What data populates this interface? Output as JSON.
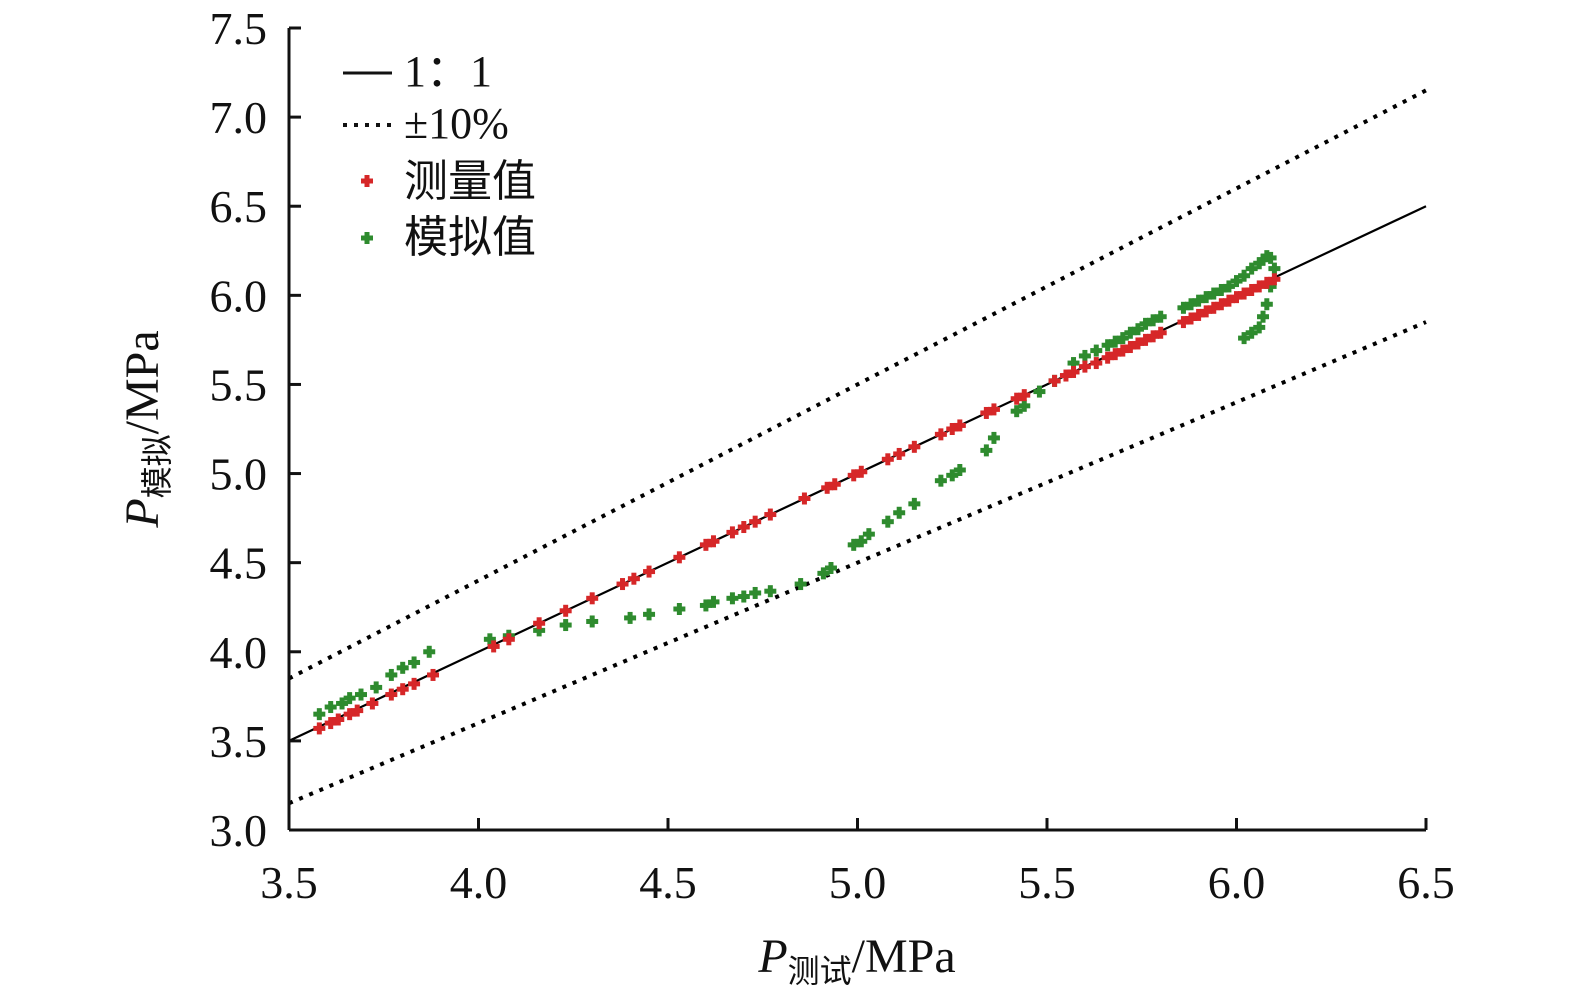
{
  "chart_data": {
    "type": "scatter",
    "xlabel": {
      "main": "P",
      "sub": "测试",
      "unit": "/MPa"
    },
    "ylabel": {
      "main": "P",
      "sub": "模拟",
      "unit": "/MPa"
    },
    "xlim": [
      3.5,
      6.5
    ],
    "ylim": [
      3.0,
      7.5
    ],
    "x_ticks": [
      "3.5",
      "4.0",
      "4.5",
      "5.0",
      "5.5",
      "6.0",
      "6.5"
    ],
    "y_ticks": [
      "3.0",
      "3.5",
      "4.0",
      "4.5",
      "5.0",
      "5.5",
      "6.0",
      "6.5",
      "7.0",
      "7.5"
    ],
    "grid": false,
    "legend_position": "top-left",
    "colors": {
      "measured": "#d62728",
      "simulated": "#2e8b2e",
      "reference": "#000000"
    },
    "reference_lines": [
      {
        "name": "1：1",
        "slope": 1.0,
        "style": "solid"
      },
      {
        "name": "±10%",
        "slopes": [
          1.1,
          0.9
        ],
        "style": "dotted"
      }
    ],
    "series": [
      {
        "name": "测量值",
        "marker": "plus",
        "color": "#d62728",
        "points": [
          [
            3.58,
            3.57
          ],
          [
            3.61,
            3.6
          ],
          [
            3.63,
            3.62
          ],
          [
            3.66,
            3.65
          ],
          [
            3.68,
            3.67
          ],
          [
            3.72,
            3.71
          ],
          [
            3.77,
            3.76
          ],
          [
            3.8,
            3.79
          ],
          [
            3.83,
            3.82
          ],
          [
            3.88,
            3.87
          ],
          [
            4.04,
            4.03
          ],
          [
            4.08,
            4.07
          ],
          [
            4.16,
            4.16
          ],
          [
            4.23,
            4.23
          ],
          [
            4.3,
            4.3
          ],
          [
            4.38,
            4.38
          ],
          [
            4.41,
            4.41
          ],
          [
            4.45,
            4.45
          ],
          [
            4.53,
            4.53
          ],
          [
            4.6,
            4.6
          ],
          [
            4.62,
            4.62
          ],
          [
            4.67,
            4.67
          ],
          [
            4.7,
            4.7
          ],
          [
            4.73,
            4.73
          ],
          [
            4.77,
            4.77
          ],
          [
            4.86,
            4.86
          ],
          [
            4.92,
            4.92
          ],
          [
            4.94,
            4.94
          ],
          [
            4.99,
            4.99
          ],
          [
            5.01,
            5.01
          ],
          [
            5.08,
            5.08
          ],
          [
            5.11,
            5.11
          ],
          [
            5.15,
            5.15
          ],
          [
            5.22,
            5.22
          ],
          [
            5.25,
            5.25
          ],
          [
            5.27,
            5.27
          ],
          [
            5.34,
            5.34
          ],
          [
            5.36,
            5.36
          ],
          [
            5.42,
            5.42
          ],
          [
            5.44,
            5.44
          ],
          [
            5.52,
            5.52
          ],
          [
            5.55,
            5.55
          ],
          [
            5.57,
            5.57
          ],
          [
            5.6,
            5.6
          ],
          [
            5.63,
            5.62
          ],
          [
            5.66,
            5.65
          ],
          [
            5.68,
            5.67
          ],
          [
            5.7,
            5.69
          ],
          [
            5.72,
            5.71
          ],
          [
            5.74,
            5.73
          ],
          [
            5.76,
            5.75
          ],
          [
            5.78,
            5.77
          ],
          [
            5.8,
            5.79
          ],
          [
            5.86,
            5.85
          ],
          [
            5.88,
            5.87
          ],
          [
            5.9,
            5.89
          ],
          [
            5.92,
            5.91
          ],
          [
            5.94,
            5.93
          ],
          [
            5.96,
            5.95
          ],
          [
            5.98,
            5.97
          ],
          [
            6.0,
            5.99
          ],
          [
            6.02,
            6.01
          ],
          [
            6.04,
            6.03
          ],
          [
            6.06,
            6.05
          ],
          [
            6.08,
            6.07
          ],
          [
            6.1,
            6.09
          ]
        ]
      },
      {
        "name": "模拟值",
        "marker": "plus",
        "color": "#2e8b2e",
        "points": [
          [
            3.58,
            3.65
          ],
          [
            3.61,
            3.69
          ],
          [
            3.64,
            3.71
          ],
          [
            3.66,
            3.74
          ],
          [
            3.69,
            3.76
          ],
          [
            3.73,
            3.8
          ],
          [
            3.77,
            3.87
          ],
          [
            3.8,
            3.91
          ],
          [
            3.83,
            3.94
          ],
          [
            3.87,
            4.0
          ],
          [
            4.03,
            4.07
          ],
          [
            4.08,
            4.09
          ],
          [
            4.16,
            4.12
          ],
          [
            4.23,
            4.15
          ],
          [
            4.3,
            4.17
          ],
          [
            4.4,
            4.19
          ],
          [
            4.45,
            4.21
          ],
          [
            4.53,
            4.24
          ],
          [
            4.6,
            4.26
          ],
          [
            4.62,
            4.28
          ],
          [
            4.67,
            4.3
          ],
          [
            4.7,
            4.31
          ],
          [
            4.73,
            4.33
          ],
          [
            4.77,
            4.34
          ],
          [
            4.85,
            4.38
          ],
          [
            4.91,
            4.44
          ],
          [
            4.93,
            4.47
          ],
          [
            4.99,
            4.6
          ],
          [
            5.01,
            4.62
          ],
          [
            5.03,
            4.66
          ],
          [
            5.08,
            4.73
          ],
          [
            5.11,
            4.78
          ],
          [
            5.15,
            4.83
          ],
          [
            5.22,
            4.96
          ],
          [
            5.25,
            4.99
          ],
          [
            5.27,
            5.02
          ],
          [
            5.34,
            5.13
          ],
          [
            5.36,
            5.2
          ],
          [
            5.42,
            5.35
          ],
          [
            5.44,
            5.38
          ],
          [
            5.48,
            5.46
          ],
          [
            5.52,
            5.52
          ],
          [
            5.57,
            5.62
          ],
          [
            5.6,
            5.66
          ],
          [
            5.63,
            5.69
          ],
          [
            5.66,
            5.72
          ],
          [
            5.68,
            5.74
          ],
          [
            5.7,
            5.76
          ],
          [
            5.72,
            5.79
          ],
          [
            5.74,
            5.81
          ],
          [
            5.76,
            5.84
          ],
          [
            5.78,
            5.86
          ],
          [
            5.8,
            5.88
          ],
          [
            5.86,
            5.93
          ],
          [
            5.88,
            5.95
          ],
          [
            5.9,
            5.97
          ],
          [
            5.92,
            5.99
          ],
          [
            5.94,
            6.01
          ],
          [
            5.96,
            6.03
          ],
          [
            5.98,
            6.05
          ],
          [
            6.0,
            6.08
          ],
          [
            6.02,
            6.11
          ],
          [
            6.04,
            6.15
          ],
          [
            6.06,
            6.18
          ],
          [
            6.07,
            6.2
          ],
          [
            6.08,
            6.22
          ],
          [
            6.09,
            6.21
          ],
          [
            6.1,
            6.15
          ],
          [
            6.09,
            6.05
          ],
          [
            6.08,
            5.95
          ],
          [
            6.07,
            5.88
          ],
          [
            6.06,
            5.82
          ],
          [
            6.04,
            5.79
          ],
          [
            6.02,
            5.76
          ]
        ]
      }
    ]
  }
}
